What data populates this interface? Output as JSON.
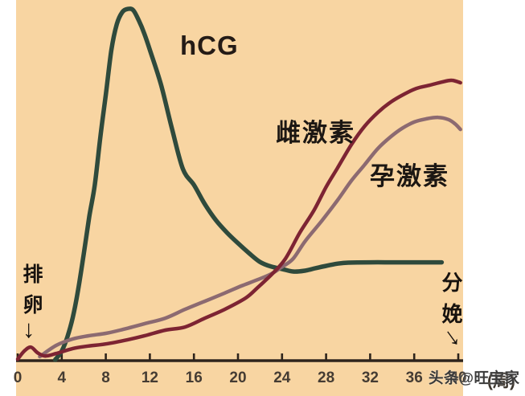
{
  "page": {
    "background": "#ffffff",
    "plot_background": "#f8d5a2"
  },
  "chart_data": {
    "type": "line",
    "title": "",
    "xlabel": "(周)",
    "ylabel": "",
    "x_axis": {
      "unit_label": "(周)",
      "ticks": [
        0,
        4,
        8,
        12,
        16,
        20,
        24,
        28,
        32,
        36,
        40
      ],
      "xlim": [
        0,
        40.3
      ],
      "axis_color": "#2e241c",
      "tick_label_color": "#453c33"
    },
    "y_axis": {
      "visible": false,
      "ylim": [
        0,
        100
      ]
    },
    "grid": false,
    "legend_position": "inline-labels",
    "series": [
      {
        "name": "hCG",
        "color": "#2f4a3c",
        "stroke_width": 5.5,
        "points": [
          [
            3.4,
            0
          ],
          [
            4,
            2.5
          ],
          [
            4.5,
            6.4
          ],
          [
            5,
            12
          ],
          [
            5.5,
            20
          ],
          [
            6,
            30
          ],
          [
            6.5,
            40.5
          ],
          [
            7,
            49.5
          ],
          [
            7.5,
            63
          ],
          [
            8,
            75
          ],
          [
            8.5,
            87.5
          ],
          [
            9,
            95
          ],
          [
            9.5,
            98.4
          ],
          [
            10,
            99.3
          ],
          [
            10.5,
            98.9
          ],
          [
            11,
            96
          ],
          [
            11.5,
            92.3
          ],
          [
            12,
            87.7
          ],
          [
            13,
            78
          ],
          [
            14,
            65.5
          ],
          [
            15,
            54
          ],
          [
            16,
            49.5
          ],
          [
            17,
            44
          ],
          [
            18,
            39.5
          ],
          [
            19,
            36
          ],
          [
            20,
            33
          ],
          [
            21,
            30.2
          ],
          [
            22,
            27.7
          ],
          [
            23,
            26.4
          ],
          [
            24,
            25.7
          ],
          [
            25,
            25.0
          ],
          [
            26,
            25.2
          ],
          [
            27,
            25.9
          ],
          [
            28,
            26.6
          ],
          [
            29,
            27.2
          ],
          [
            30,
            27.5
          ],
          [
            32,
            27.6
          ],
          [
            34,
            27.6
          ],
          [
            36,
            27.6
          ],
          [
            38.5,
            27.6
          ]
        ]
      },
      {
        "name": "雌激素",
        "color": "#7d2433",
        "stroke_width": 4.5,
        "points": [
          [
            0,
            0.2
          ],
          [
            0.6,
            2.5
          ],
          [
            1.2,
            3.6
          ],
          [
            1.8,
            2.0
          ],
          [
            2.5,
            1.1
          ],
          [
            3.5,
            1.8
          ],
          [
            5,
            3.2
          ],
          [
            6.4,
            3.9
          ],
          [
            8,
            4.5
          ],
          [
            10,
            5.7
          ],
          [
            11.5,
            6.8
          ],
          [
            13.4,
            8.4
          ],
          [
            15.2,
            9.3
          ],
          [
            17,
            11.8
          ],
          [
            18.8,
            14.3
          ],
          [
            20.7,
            17.5
          ],
          [
            21.8,
            20.5
          ],
          [
            23.1,
            24.3
          ],
          [
            24.3,
            28.6
          ],
          [
            25.6,
            35.9
          ],
          [
            26.9,
            42.3
          ],
          [
            28,
            48.9
          ],
          [
            29,
            54.1
          ],
          [
            30.3,
            60.9
          ],
          [
            31.5,
            66.1
          ],
          [
            32.7,
            70
          ],
          [
            33.9,
            73
          ],
          [
            35.1,
            75.2
          ],
          [
            36.2,
            76.8
          ],
          [
            37.4,
            77.7
          ],
          [
            38.5,
            78.6
          ],
          [
            39.4,
            79.1
          ],
          [
            40.2,
            78.4
          ]
        ]
      },
      {
        "name": "孕激素",
        "color": "#8c6a71",
        "stroke_width": 4.5,
        "points": [
          [
            2,
            0.9
          ],
          [
            3.5,
            4.1
          ],
          [
            5,
            5.9
          ],
          [
            6.4,
            6.8
          ],
          [
            8,
            7.5
          ],
          [
            9.3,
            8.4
          ],
          [
            11.5,
            10.2
          ],
          [
            13.4,
            11.8
          ],
          [
            15.2,
            14.3
          ],
          [
            17,
            16.6
          ],
          [
            18.8,
            18.9
          ],
          [
            20.3,
            20.9
          ],
          [
            21.8,
            22.7
          ],
          [
            23,
            24.3
          ],
          [
            23.9,
            26.1
          ],
          [
            25,
            28.6
          ],
          [
            26.1,
            33.6
          ],
          [
            27.6,
            39.3
          ],
          [
            29,
            45
          ],
          [
            30.3,
            50.7
          ],
          [
            31.5,
            55.2
          ],
          [
            32.7,
            59.8
          ],
          [
            33.9,
            63.2
          ],
          [
            34.9,
            65.5
          ],
          [
            36,
            67.3
          ],
          [
            37.1,
            68.2
          ],
          [
            38.2,
            68.6
          ],
          [
            39.1,
            68
          ],
          [
            39.7,
            66.8
          ],
          [
            40.2,
            65.2
          ]
        ]
      }
    ],
    "annotations": [
      {
        "text": "排卵",
        "arrow": "↓",
        "position": "bottom-left"
      },
      {
        "text": "分娩",
        "arrow": "↓",
        "position": "bottom-right"
      }
    ]
  },
  "watermark": {
    "text": "头条@旺宝家"
  }
}
